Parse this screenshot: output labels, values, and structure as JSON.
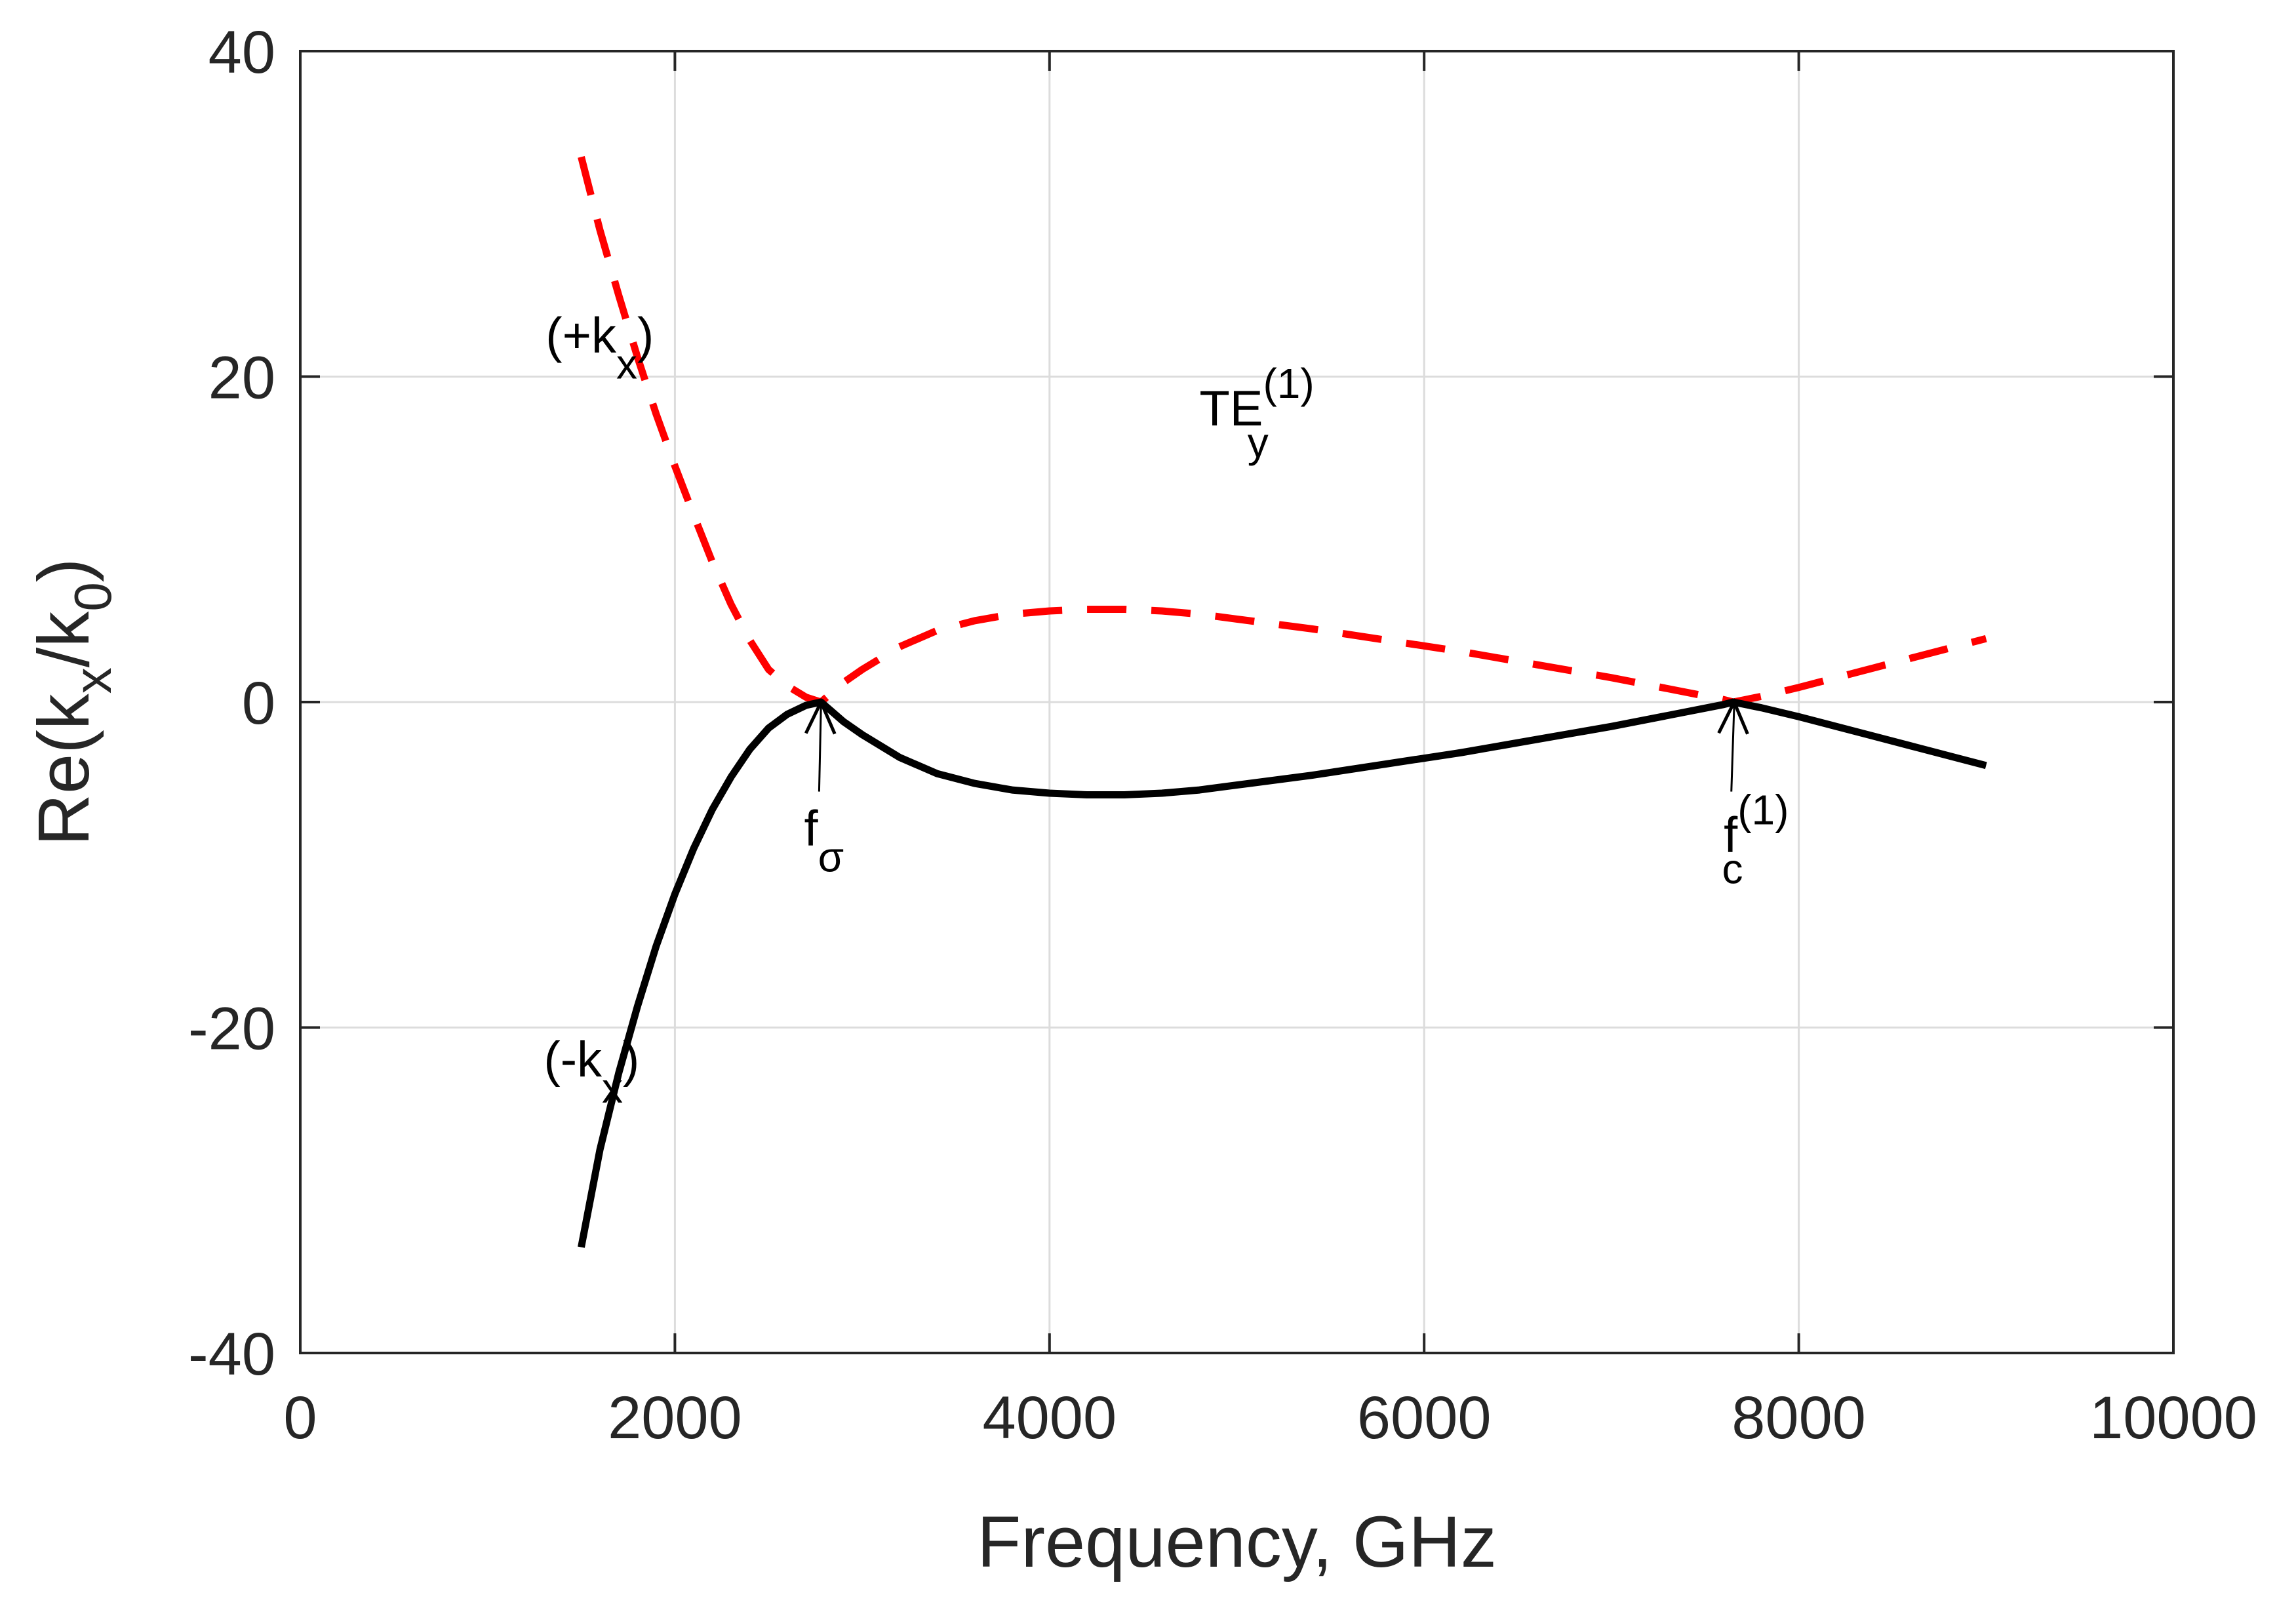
{
  "chart_data": {
    "type": "line",
    "title": "",
    "xlabel": "Frequency, GHz",
    "ylabel": {
      "base": "Re(k",
      "sub1": "x",
      "mid": "/k",
      "sub2": "0",
      "end": ")"
    },
    "xlim": [
      0,
      10000
    ],
    "ylim": [
      -40,
      40
    ],
    "xticks": [
      0,
      2000,
      4000,
      6000,
      8000,
      10000
    ],
    "xtick_labels": [
      "0",
      "2000",
      "4000",
      "6000",
      "8000",
      "10000"
    ],
    "yticks": [
      -40,
      -20,
      0,
      20,
      40
    ],
    "ytick_labels": [
      "-40",
      "-20",
      "0",
      "20",
      "40"
    ],
    "grid": true,
    "series": [
      {
        "name": "+k_x",
        "color": "#ff0000",
        "style": "dashed",
        "x": [
          1500,
          1600,
          1700,
          1800,
          1900,
          2000,
          2100,
          2200,
          2300,
          2400,
          2500,
          2600,
          2700,
          2780,
          2900,
          3000,
          3200,
          3400,
          3600,
          3800,
          4000,
          4200,
          4400,
          4600,
          4800,
          5000,
          5400,
          5800,
          6200,
          6600,
          7000,
          7400,
          7600,
          7650,
          7800,
          8000,
          8200,
          8400,
          8600,
          8800,
          9000
        ],
        "y": [
          33.5,
          29,
          25,
          21.2,
          17.7,
          14.5,
          11.5,
          8.6,
          6,
          3.8,
          2,
          1,
          0.3,
          0,
          1.2,
          2,
          3.4,
          4.4,
          5,
          5.4,
          5.6,
          5.7,
          5.7,
          5.6,
          5.4,
          5.1,
          4.5,
          3.8,
          3.1,
          2.3,
          1.5,
          0.6,
          0.15,
          0,
          0.35,
          0.9,
          1.5,
          2.1,
          2.7,
          3.3,
          3.9
        ]
      },
      {
        "name": "-k_x",
        "color": "#000000",
        "style": "solid",
        "x": [
          1500,
          1600,
          1700,
          1800,
          1900,
          2000,
          2100,
          2200,
          2300,
          2400,
          2500,
          2600,
          2700,
          2780,
          2900,
          3000,
          3200,
          3400,
          3600,
          3800,
          4000,
          4200,
          4400,
          4600,
          4800,
          5000,
          5400,
          5800,
          6200,
          6600,
          7000,
          7400,
          7600,
          7650,
          7800,
          8000,
          8200,
          8400,
          8600,
          8800,
          9000
        ],
        "y": [
          -33.5,
          -27.5,
          -22.8,
          -18.7,
          -15,
          -11.8,
          -9,
          -6.6,
          -4.6,
          -2.9,
          -1.6,
          -0.75,
          -0.2,
          0,
          -1.2,
          -2,
          -3.4,
          -4.4,
          -5,
          -5.4,
          -5.6,
          -5.7,
          -5.7,
          -5.6,
          -5.4,
          -5.1,
          -4.5,
          -3.8,
          -3.1,
          -2.3,
          -1.5,
          -0.6,
          -0.15,
          0,
          -0.35,
          -0.9,
          -1.5,
          -2.1,
          -2.7,
          -3.3,
          -3.9
        ]
      }
    ],
    "annotations": [
      {
        "id": "plus-kx",
        "base": "(+k",
        "sub": "x",
        "end": ")",
        "sup": "",
        "at": [
          1310,
          21.5
        ]
      },
      {
        "id": "minus-kx",
        "base": "(-k",
        "sub": "x",
        "end": ")",
        "sup": "",
        "at": [
          1300,
          -23
        ]
      },
      {
        "id": "te-mode",
        "base": "TE",
        "sub": "y",
        "end": "",
        "sup": "(1)",
        "at": [
          4800,
          17
        ]
      },
      {
        "id": "f-sigma",
        "base": "f",
        "sub": "σ",
        "end": "",
        "sup": "",
        "at": [
          2690,
          -8.8
        ]
      },
      {
        "id": "f-c1",
        "base": "f",
        "sub": "c",
        "end": "",
        "sup": "(1)",
        "at": [
          7590,
          -9.2
        ]
      }
    ],
    "arrows": [
      {
        "id": "f-sigma-arrow",
        "from": [
          2770,
          -5.5
        ],
        "to": [
          2780,
          0
        ]
      },
      {
        "id": "f-c1-arrow",
        "from": [
          7640,
          -5.5
        ],
        "to": [
          7655,
          0
        ]
      }
    ]
  }
}
